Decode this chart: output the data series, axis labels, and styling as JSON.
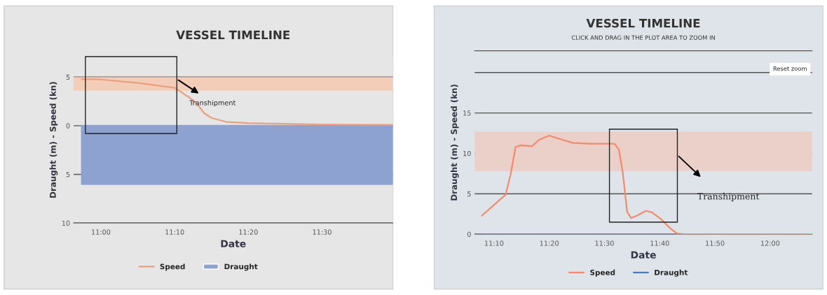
{
  "chart_data": [
    {
      "type": "line",
      "title": "VESSEL TIMELINE",
      "xlabel": "Date",
      "ylabel": "Draught (m) - Speed (kn)",
      "xlim": [
        10.9383,
        11.66
      ],
      "xticks": [
        {
          "value": 11.0,
          "label": "11:00"
        },
        {
          "value": 11.1667,
          "label": "11:10"
        },
        {
          "value": 11.3333,
          "label": "11:20"
        },
        {
          "value": 11.5,
          "label": "11:30"
        }
      ],
      "ylim": [
        -10,
        7.1
      ],
      "yticks": [
        {
          "value": -10,
          "label": "10"
        },
        {
          "value": -5,
          "label": "5"
        },
        0,
        5
      ],
      "grid": "y",
      "legend": "bottom",
      "bands": [
        {
          "axis": "y",
          "from": 3.6,
          "to": 5,
          "color": "#f3cdb8"
        }
      ],
      "series": [
        {
          "name": "Speed",
          "color": "#e8a080",
          "x": [
            10.9567,
            11.0,
            11.0833,
            11.1667,
            11.2,
            11.2167,
            11.2333,
            11.25,
            11.2833,
            11.3333,
            11.5,
            11.66
          ],
          "values": [
            4.8,
            4.75,
            4.4,
            3.9,
            2.9,
            2.3,
            1.3,
            0.8,
            0.4,
            0.27,
            0.13,
            0.08
          ]
        },
        {
          "name": "Draught",
          "type": "area",
          "color": "#8da2d0",
          "x": [
            10.9567,
            11.66
          ],
          "values": [
            -6.0,
            -6.0
          ]
        }
      ],
      "annotations": [
        "Transhipment"
      ]
    },
    {
      "type": "line",
      "title": "VESSEL TIMELINE",
      "subtitle": "CLICK AND DRAG IN THE PLOT AREA TO ZOOM IN",
      "xlabel": "Date",
      "ylabel": "Draught (m) - Speed (kn)",
      "xlim": [
        11.1083,
        12.1267
      ],
      "xticks": [
        {
          "value": 11.1667,
          "label": "11:10"
        },
        {
          "value": 11.3333,
          "label": "11:20"
        },
        {
          "value": 11.5,
          "label": "11:30"
        },
        {
          "value": 11.6667,
          "label": "11:40"
        },
        {
          "value": 11.8333,
          "label": "11:50"
        },
        {
          "value": 12.0,
          "label": "12:00"
        }
      ],
      "ylim": [
        0,
        22.7
      ],
      "yticks": [
        0,
        5,
        10,
        15,
        {
          "value": 20,
          "label": null
        }
      ],
      "grid": "y",
      "legend": "bottom",
      "bands": [
        {
          "axis": "y",
          "from": 7.8,
          "to": 12.7,
          "color": "#ead0c8"
        }
      ],
      "series": [
        {
          "name": "Speed",
          "color": "#f4896b",
          "x": [
            11.13,
            11.2017,
            11.2167,
            11.2317,
            11.2467,
            11.2817,
            11.3033,
            11.3333,
            11.3717,
            11.405,
            11.455,
            11.53,
            11.5433,
            11.555,
            11.5683,
            11.58,
            11.5983,
            11.625,
            11.6433,
            11.67,
            11.6967,
            11.7183,
            11.7417,
            12.1267
          ],
          "values": [
            2.3,
            4.9,
            7.4,
            10.8,
            11.0,
            10.9,
            11.7,
            12.2,
            11.7,
            11.3,
            11.2,
            11.2,
            10.5,
            7.7,
            2.8,
            2.0,
            2.3,
            2.9,
            2.7,
            1.9,
            0.8,
            0.1,
            0,
            0
          ]
        },
        {
          "name": "Draught",
          "type": "line",
          "color": "#4a7ab8",
          "x": [
            11.13,
            12.1267
          ],
          "values": [
            0,
            0
          ]
        }
      ],
      "annotations": [
        "Transhipment",
        "Reset zoom"
      ]
    }
  ]
}
